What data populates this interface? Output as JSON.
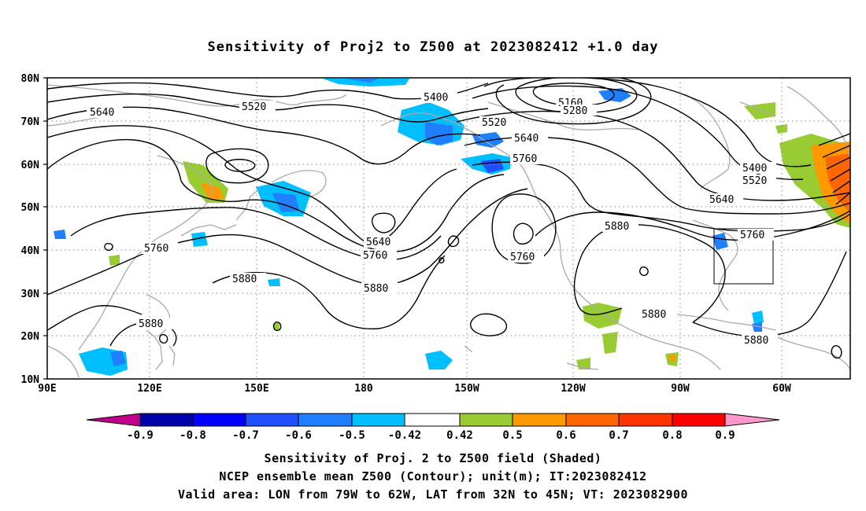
{
  "title": "Sensitivity of Proj2 to Z500 at 2023082412 +1.0 day",
  "map": {
    "lat_labels": [
      "80N",
      "70N",
      "60N",
      "50N",
      "40N",
      "30N",
      "20N",
      "10N"
    ],
    "lon_labels": [
      "90E",
      "120E",
      "150E",
      "180",
      "150W",
      "120W",
      "90W",
      "60W"
    ],
    "lon_range": [
      "90E",
      "45W"
    ],
    "lat_range": [
      "10N",
      "80N"
    ],
    "gridlines": "dotted",
    "coastline_color": "#aaaaaa",
    "contour_labels": [
      "5640",
      "5520",
      "5400",
      "5160",
      "5280",
      "5520",
      "5640",
      "5760",
      "5400",
      "5520",
      "5640",
      "5760",
      "5880",
      "5760",
      "5640",
      "5760",
      "5760",
      "5880",
      "5880",
      "5880",
      "5880",
      "5880"
    ],
    "valid_area": {
      "lon": [
        "79W",
        "62W"
      ],
      "lat": [
        "32N",
        "45N"
      ]
    }
  },
  "colorbar": {
    "labels": [
      "-0.9",
      "-0.8",
      "-0.7",
      "-0.6",
      "-0.5",
      "-0.42",
      "0.42",
      "0.5",
      "0.6",
      "0.7",
      "0.8",
      "0.9"
    ],
    "colors": [
      "#c0008b",
      "#0000a8",
      "#0000ff",
      "#1f4fff",
      "#1f7fff",
      "#00bfff",
      "#ffffff",
      "#99cc33",
      "#ff9900",
      "#ff6600",
      "#ff3300",
      "#ff0000",
      "#ff99cc"
    ]
  },
  "captions": {
    "line1": "Sensitivity of Proj. 2 to Z500 field (Shaded)",
    "line2": "NCEP ensemble mean Z500 (Contour); unit(m); IT:2023082412",
    "line3": "Valid area: LON from 79W to 62W, LAT from 32N to 45N; VT: 2023082900"
  }
}
